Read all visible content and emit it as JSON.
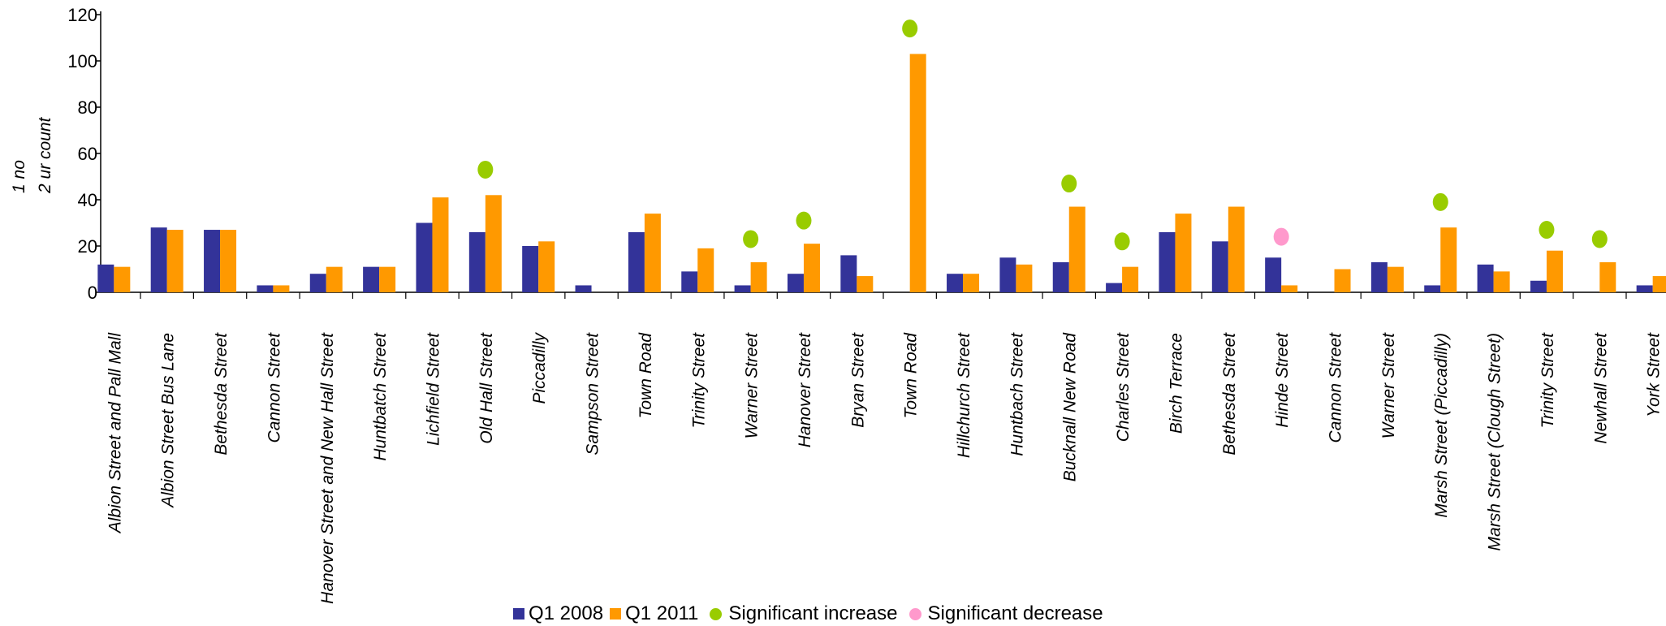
{
  "chart_data": {
    "type": "bar",
    "ylabel_lines": [
      "1  no",
      "2  ur    count"
    ],
    "ylim": [
      0,
      120
    ],
    "yticks": [
      0,
      20,
      40,
      60,
      80,
      100,
      120
    ],
    "categories": [
      "Albion Street and Pall Mall",
      "Albion Street Bus Lane",
      "Bethesda Street",
      "Cannon Street",
      "Hanover Street and New Hall Street",
      "Huntbatch Street",
      "Lichfield Street",
      "Old Hall Street",
      "Piccadilly",
      "Sampson Street",
      "Town Road",
      "Trinity Street",
      "Warner Street",
      "Hanover Street",
      "Bryan Street",
      "Town Road",
      "Hillchurch Street",
      "Huntbach Street",
      "Bucknall New Road",
      "Charles Street",
      "Birch Terrace",
      "Bethesda Street",
      "Hinde Street",
      "Cannon Street",
      "Warner Street",
      "Marsh Street (Piccadilly)",
      "Marsh Street (Clough Street)",
      "Trinity Street",
      "Newhall Street",
      "York Street"
    ],
    "series": [
      {
        "name": "Q1 2008",
        "color": "#333399",
        "values": [
          12,
          28,
          27,
          3,
          8,
          11,
          30,
          26,
          20,
          3,
          26,
          9,
          3,
          8,
          16,
          0,
          8,
          15,
          13,
          4,
          26,
          22,
          15,
          0,
          13,
          3,
          12,
          5,
          0,
          3
        ]
      },
      {
        "name": "Q1 2011",
        "color": "#FF9900",
        "values": [
          11,
          27,
          27,
          3,
          11,
          11,
          41,
          42,
          22,
          0,
          34,
          19,
          13,
          21,
          7,
          103,
          8,
          12,
          37,
          11,
          34,
          37,
          3,
          10,
          11,
          28,
          9,
          18,
          13,
          7
        ]
      }
    ],
    "markers": [
      {
        "category_index": 7,
        "value": 53,
        "kind": "increase"
      },
      {
        "category_index": 12,
        "value": 23,
        "kind": "increase"
      },
      {
        "category_index": 13,
        "value": 31,
        "kind": "increase"
      },
      {
        "category_index": 15,
        "value": 114,
        "kind": "increase"
      },
      {
        "category_index": 18,
        "value": 47,
        "kind": "increase"
      },
      {
        "category_index": 19,
        "value": 22,
        "kind": "increase"
      },
      {
        "category_index": 22,
        "value": 24,
        "kind": "decrease"
      },
      {
        "category_index": 25,
        "value": 39,
        "kind": "increase"
      },
      {
        "category_index": 27,
        "value": 27,
        "kind": "increase"
      },
      {
        "category_index": 28,
        "value": 23,
        "kind": "increase"
      }
    ],
    "marker_colors": {
      "increase": "#99CC00",
      "decrease": "#FF99CC"
    },
    "legend": {
      "placement": "bottom-center",
      "items": [
        {
          "label": "Q1 2008",
          "shape": "square",
          "color": "#333399"
        },
        {
          "label": "Q1 2011",
          "shape": "square",
          "color": "#FF9900"
        },
        {
          "label": "Significant increase",
          "shape": "dot",
          "color": "#99CC00"
        },
        {
          "label": "Significant decrease",
          "shape": "dot",
          "color": "#FF99CC"
        }
      ]
    }
  }
}
